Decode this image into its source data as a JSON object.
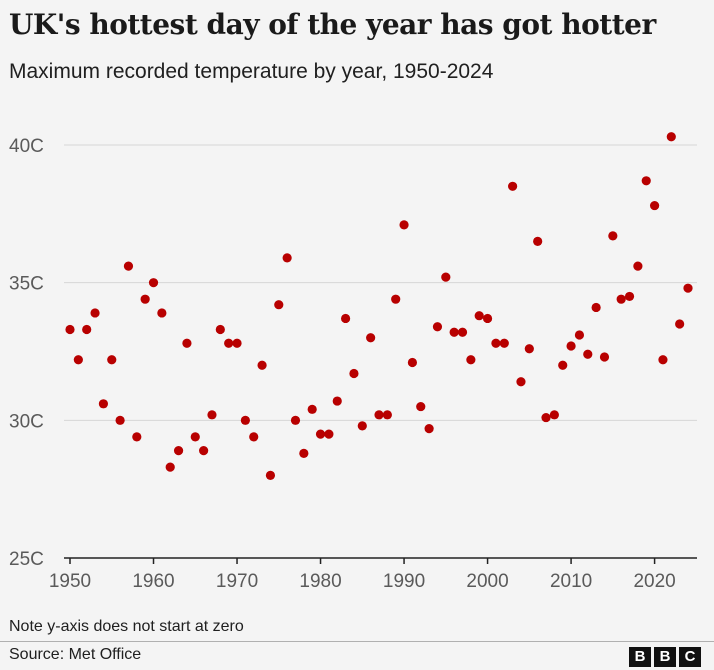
{
  "header": {
    "title": "UK's hottest day of the year has got hotter",
    "subtitle": "Maximum recorded temperature by year, 1950-2024"
  },
  "footer": {
    "note": "Note y-axis does not start at zero",
    "source": "Source: Met Office",
    "logo_letters": [
      "B",
      "B",
      "C"
    ]
  },
  "colors": {
    "point": "#b80000",
    "grid": "#d6d6d6",
    "axis": "#222222",
    "background": "#f4f4f4"
  },
  "chart_data": {
    "type": "scatter",
    "title": "UK's hottest day of the year has got hotter",
    "xlabel": "",
    "ylabel": "",
    "xlim": [
      1950,
      2024
    ],
    "ylim": [
      25,
      40
    ],
    "xticks": [
      1950,
      1960,
      1970,
      1980,
      1990,
      2000,
      2010,
      2020
    ],
    "yticks": [
      25,
      30,
      35,
      40
    ],
    "ytick_labels": [
      "25C",
      "30C",
      "35C",
      "40C"
    ],
    "grid": true,
    "series": [
      {
        "x": [
          1950,
          1951,
          1952,
          1953,
          1954,
          1955,
          1956,
          1957,
          1958,
          1959,
          1960,
          1961,
          1962,
          1963,
          1964,
          1965,
          1966,
          1967,
          1968,
          1969,
          1970,
          1971,
          1972,
          1973,
          1974,
          1975,
          1976,
          1977,
          1978,
          1979,
          1980,
          1981,
          1982,
          1983,
          1984,
          1985,
          1986,
          1987,
          1988,
          1989,
          1990,
          1991,
          1992,
          1993,
          1994,
          1995,
          1996,
          1997,
          1998,
          1999,
          2000,
          2001,
          2002,
          2003,
          2004,
          2005,
          2006,
          2007,
          2008,
          2009,
          2010,
          2011,
          2012,
          2013,
          2014,
          2015,
          2016,
          2017,
          2018,
          2019,
          2020,
          2021,
          2022,
          2023,
          2024
        ],
        "y": [
          33.3,
          32.2,
          33.3,
          33.9,
          30.6,
          32.2,
          30.0,
          35.6,
          29.4,
          34.4,
          35.0,
          33.9,
          28.3,
          28.9,
          32.8,
          29.4,
          28.9,
          30.2,
          33.3,
          32.8,
          32.8,
          30.0,
          29.4,
          32.0,
          28.0,
          34.2,
          35.9,
          30.0,
          28.8,
          30.4,
          29.5,
          29.5,
          30.7,
          33.7,
          31.7,
          29.8,
          33.0,
          30.2,
          30.2,
          34.4,
          37.1,
          32.1,
          30.5,
          29.7,
          33.4,
          35.2,
          33.2,
          33.2,
          32.2,
          33.8,
          33.7,
          32.8,
          32.8,
          38.5,
          31.4,
          32.6,
          36.5,
          30.1,
          30.2,
          32.0,
          32.7,
          33.1,
          32.4,
          34.1,
          32.3,
          36.7,
          34.4,
          34.5,
          35.6,
          38.7,
          37.8,
          32.2,
          40.3,
          33.5,
          34.8
        ]
      }
    ]
  }
}
